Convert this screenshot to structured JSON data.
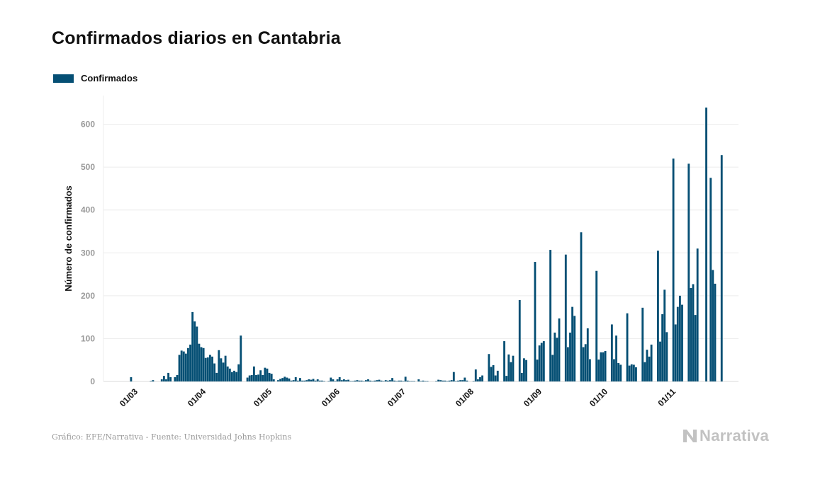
{
  "page": {
    "title": "Confirmados diarios en Cantabria"
  },
  "legend": {
    "label": "Confirmados"
  },
  "footer": {
    "source": "Gráfico: EFE/Narrativa - Fuente: Universidad Johns Hopkins"
  },
  "brand": {
    "name": "Narrativa",
    "icon": "narrativa-logo-icon"
  },
  "colors": {
    "bar": "#054f74",
    "grid": "#ececec",
    "tick": "#999999"
  },
  "chart_data": {
    "type": "bar",
    "title": "Confirmados diarios en Cantabria",
    "ylabel": "Número de confirmados",
    "xlabel": "",
    "ylim": [
      0,
      667
    ],
    "yticks": [
      0,
      100,
      200,
      300,
      400,
      500,
      600
    ],
    "grid": true,
    "legend_position": "top-left",
    "x_ticks": [
      "01/03",
      "01/04",
      "01/05",
      "01/06",
      "01/07",
      "01/08",
      "01/09",
      "01/10",
      "01/11"
    ],
    "series": [
      {
        "name": "Confirmados",
        "start_date": "2020-02-26",
        "values": [
          0,
          0,
          0,
          10,
          0,
          0,
          0,
          0,
          0,
          0,
          0,
          0,
          1,
          3,
          0,
          0,
          0,
          5,
          13,
          5,
          20,
          10,
          0,
          10,
          15,
          62,
          72,
          70,
          65,
          78,
          86,
          162,
          140,
          128,
          88,
          80,
          78,
          55,
          56,
          62,
          58,
          42,
          20,
          73,
          54,
          44,
          60,
          35,
          30,
          22,
          25,
          22,
          40,
          107,
          0,
          0,
          9,
          14,
          15,
          35,
          15,
          16,
          26,
          15,
          32,
          30,
          20,
          18,
          5,
          0,
          3,
          6,
          8,
          11,
          9,
          7,
          2,
          3,
          10,
          2,
          8,
          2,
          2,
          3,
          5,
          4,
          6,
          2,
          5,
          2,
          2,
          1,
          0,
          1,
          9,
          5,
          1,
          5,
          10,
          3,
          5,
          3,
          4,
          1,
          1,
          2,
          3,
          2,
          2,
          1,
          3,
          5,
          2,
          1,
          2,
          3,
          4,
          2,
          1,
          3,
          2,
          3,
          8,
          2,
          1,
          2,
          2,
          1,
          11,
          2,
          1,
          1,
          1,
          0,
          5,
          1,
          2,
          1,
          1,
          0,
          0,
          0,
          1,
          4,
          3,
          2,
          2,
          1,
          2,
          3,
          22,
          1,
          2,
          3,
          3,
          9,
          2,
          0,
          0,
          1,
          28,
          5,
          10,
          14,
          0,
          0,
          64,
          34,
          38,
          14,
          25,
          0,
          0,
          94,
          13,
          63,
          45,
          60,
          0,
          0,
          190,
          20,
          54,
          50,
          0,
          0,
          0,
          279,
          51,
          84,
          90,
          94,
          0,
          0,
          307,
          62,
          114,
          102,
          147,
          0,
          0,
          296,
          80,
          114,
          174,
          153,
          0,
          0,
          348,
          80,
          87,
          124,
          52,
          0,
          0,
          258,
          51,
          68,
          68,
          71,
          0,
          0,
          133,
          52,
          107,
          43,
          39,
          0,
          0,
          159,
          37,
          40,
          39,
          33,
          0,
          0,
          172,
          45,
          74,
          58,
          86,
          0,
          0,
          305,
          93,
          157,
          214,
          115,
          0,
          0,
          520,
          133,
          174,
          200,
          179,
          0,
          0,
          508,
          218,
          227,
          155,
          310,
          0,
          0,
          0,
          639,
          0,
          475,
          260,
          228,
          0,
          0,
          528
        ]
      }
    ]
  }
}
